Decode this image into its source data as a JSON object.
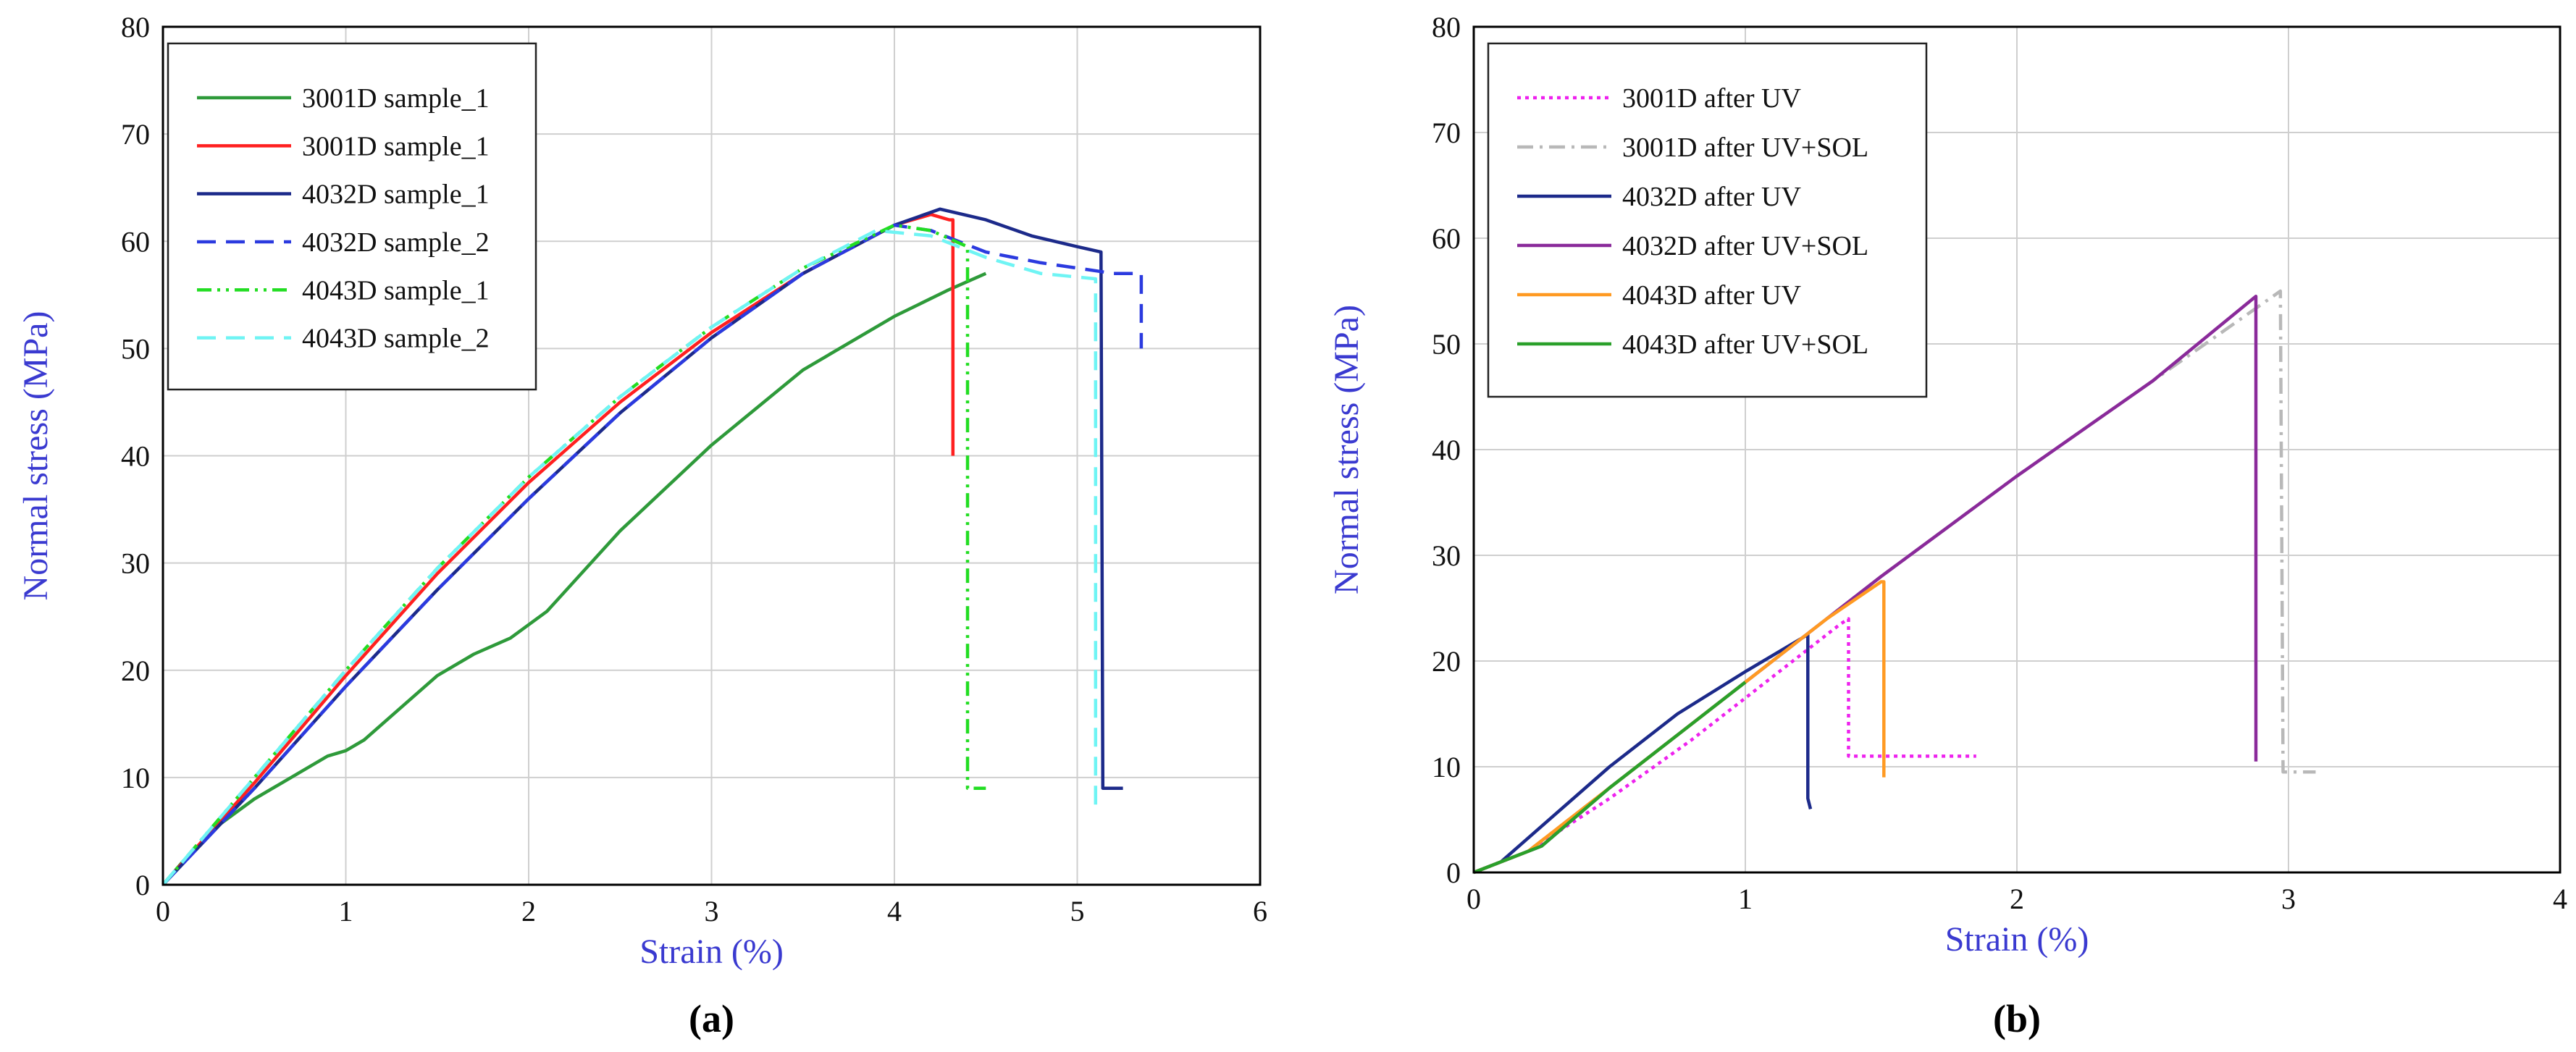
{
  "chart_data": [
    {
      "type": "line",
      "panel_label": "(a)",
      "xlabel": "Strain (%)",
      "ylabel": "Normal stress (MPa)",
      "xlim": [
        0,
        6
      ],
      "ylim": [
        0,
        80
      ],
      "xticks": [
        "0",
        "1",
        "2",
        "3",
        "4",
        "5",
        "6"
      ],
      "yticks": [
        "0",
        "10",
        "20",
        "30",
        "40",
        "50",
        "60",
        "70",
        "80"
      ],
      "grid": true,
      "legend_position": "top-left",
      "series": [
        {
          "name": "3001D sample_1",
          "color": "#2e9a3a",
          "dash": "solid",
          "x": [
            0,
            0.1,
            0.3,
            0.5,
            0.7,
            0.9,
            1.0,
            1.1,
            1.3,
            1.5,
            1.7,
            1.9,
            2.1,
            2.5,
            3.0,
            3.5,
            4.0,
            4.3,
            4.5
          ],
          "y": [
            0,
            2,
            5.5,
            8,
            10,
            12,
            12.5,
            13.5,
            16.5,
            19.5,
            21.5,
            23,
            25.5,
            33,
            41,
            48,
            53,
            55.5,
            57
          ]
        },
        {
          "name": "3001D sample_1",
          "color": "#ff2020",
          "dash": "solid",
          "x": [
            0,
            0.5,
            1.0,
            1.5,
            2.0,
            2.5,
            3.0,
            3.5,
            4.0,
            4.2,
            4.3,
            4.32,
            4.32
          ],
          "y": [
            0,
            9.5,
            19.5,
            29,
            37.5,
            45,
            51.5,
            57,
            61.5,
            62.5,
            62,
            62,
            40
          ]
        },
        {
          "name": "4032D sample_1",
          "color": "#1c2a8a",
          "dash": "solid",
          "x": [
            0,
            0.5,
            1.0,
            1.5,
            2.0,
            2.5,
            3.0,
            3.5,
            4.0,
            4.25,
            4.5,
            4.75,
            5.0,
            5.13,
            5.14,
            5.25
          ],
          "y": [
            0,
            9,
            18.5,
            27.5,
            36,
            44,
            51,
            57,
            61.5,
            63,
            62,
            60.5,
            59.5,
            59,
            9,
            9
          ]
        },
        {
          "name": "4032D sample_2",
          "color": "#2b3adf",
          "dash": "dashed",
          "x": [
            0,
            0.5,
            1.0,
            1.5,
            2.0,
            2.5,
            3.0,
            3.5,
            4.0,
            4.2,
            4.5,
            4.8,
            5.0,
            5.2,
            5.35,
            5.35
          ],
          "y": [
            0,
            9,
            18.5,
            27.5,
            36,
            44,
            51,
            57,
            61.5,
            61,
            59,
            58,
            57.5,
            57,
            57,
            50
          ]
        },
        {
          "name": "4043D sample_1",
          "color": "#22dd22",
          "dash": "dashdotdot",
          "x": [
            0,
            0.5,
            1.0,
            1.5,
            2.0,
            2.5,
            3.0,
            3.5,
            4.0,
            4.2,
            4.4,
            4.4,
            4.5
          ],
          "y": [
            0,
            10,
            20,
            29.5,
            38,
            45.5,
            52,
            57.5,
            61.5,
            61,
            59.5,
            9,
            9
          ]
        },
        {
          "name": "4043D sample_2",
          "color": "#6ff4f4",
          "dash": "dashed",
          "x": [
            0,
            0.5,
            1.0,
            1.5,
            2.0,
            2.5,
            3.0,
            3.5,
            3.9,
            4.2,
            4.5,
            4.8,
            5.1,
            5.1
          ],
          "y": [
            0,
            10,
            20,
            29.5,
            38,
            45.5,
            52,
            57.5,
            61,
            60.5,
            58.5,
            57,
            56.5,
            7
          ]
        }
      ]
    },
    {
      "type": "line",
      "panel_label": "(b)",
      "xlabel": "Strain (%)",
      "ylabel": "Normal stress (MPa)",
      "xlim": [
        0,
        4
      ],
      "ylim": [
        0,
        80
      ],
      "xticks": [
        "0",
        "1",
        "2",
        "3",
        "4"
      ],
      "yticks": [
        "0",
        "10",
        "20",
        "30",
        "40",
        "50",
        "60",
        "70",
        "80"
      ],
      "grid": true,
      "legend_position": "top-left",
      "series": [
        {
          "name": "3001D after UV",
          "color": "#ee22ee",
          "dash": "dotted",
          "x": [
            0,
            0.2,
            0.5,
            0.8,
            1.0,
            1.2,
            1.35,
            1.38,
            1.38,
            1.85
          ],
          "y": [
            0,
            2,
            7,
            12.5,
            16.5,
            20.5,
            23.5,
            24,
            11,
            11
          ]
        },
        {
          "name": "3001D after UV+SOL",
          "color": "#b8b8b8",
          "dash": "dashdot",
          "x": [
            0,
            0.2,
            0.5,
            1.0,
            1.5,
            2.0,
            2.5,
            2.97,
            2.98,
            3.1
          ],
          "y": [
            0,
            2,
            8,
            18,
            28,
            37.5,
            46.5,
            55,
            9.5,
            9.5
          ]
        },
        {
          "name": "4032D after UV",
          "color": "#1c2a8a",
          "dash": "solid",
          "x": [
            0,
            0.1,
            0.3,
            0.5,
            0.75,
            1.0,
            1.23,
            1.23,
            1.24
          ],
          "y": [
            0,
            1,
            5.5,
            10,
            15,
            19,
            22.5,
            7,
            6
          ]
        },
        {
          "name": "4032D after UV+SOL",
          "color": "#8a2a9a",
          "dash": "solid",
          "x": [
            0,
            0.15,
            0.25,
            0.5,
            1.0,
            1.5,
            2.0,
            2.5,
            2.88,
            2.88
          ],
          "y": [
            0,
            1.5,
            2.5,
            8,
            18,
            28,
            37.5,
            46.5,
            54.5,
            10.5
          ]
        },
        {
          "name": "4043D after UV",
          "color": "#ff9a22",
          "dash": "solid",
          "x": [
            0,
            0.2,
            0.5,
            1.0,
            1.3,
            1.5,
            1.51,
            1.51
          ],
          "y": [
            0,
            2,
            8,
            18,
            24,
            27.5,
            27.5,
            9
          ]
        },
        {
          "name": "4043D after UV+SOL",
          "color": "#2aa02a",
          "dash": "solid",
          "x": [
            0,
            0.1,
            0.25,
            0.5,
            0.8,
            1.0
          ],
          "y": [
            0,
            1,
            2.5,
            8,
            14,
            18
          ]
        }
      ]
    }
  ]
}
